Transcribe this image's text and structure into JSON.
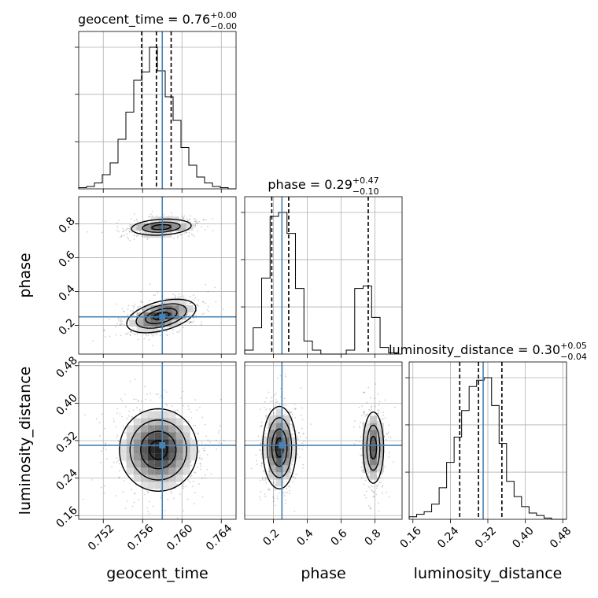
{
  "chart_data": {
    "type": "corner",
    "parameters": [
      {
        "name": "geocent_time",
        "range": [
          0.7495,
          0.7655
        ],
        "ticks": [
          0.752,
          0.756,
          0.76,
          0.764
        ],
        "tick_labels": [
          "0.752",
          "0.756",
          "0.760",
          "0.764"
        ],
        "median": 0.7574,
        "quantiles": [
          0.7559,
          0.7574,
          0.7589
        ],
        "true_value": 0.758,
        "title_value": "0.76",
        "title_plus": "+0.00",
        "title_minus": "−0.00",
        "hist_bins": [
          0.7495,
          0.7503,
          0.7511,
          0.7519,
          0.7527,
          0.7535,
          0.7543,
          0.7551,
          0.7559,
          0.7567,
          0.7575,
          0.7583,
          0.7591,
          0.7599,
          0.7607,
          0.7615,
          0.7623,
          0.7631,
          0.7639,
          0.7647,
          0.7655
        ],
        "hist_counts": [
          1,
          2,
          5,
          12,
          22,
          42,
          65,
          92,
          99,
          120,
          100,
          78,
          58,
          35,
          20,
          10,
          5,
          2,
          1,
          0
        ]
      },
      {
        "name": "phase",
        "range": [
          0.03,
          0.96
        ],
        "ticks": [
          0.2,
          0.4,
          0.6,
          0.8
        ],
        "tick_labels": [
          "0.2",
          "0.4",
          "0.6",
          "0.8"
        ],
        "median": 0.29,
        "quantiles": [
          0.19,
          0.29,
          0.76
        ],
        "true_value": 0.25,
        "title_value": "0.29",
        "title_plus": "+0.47",
        "title_minus": "−0.10",
        "hist_bins": [
          0.03,
          0.08,
          0.13,
          0.18,
          0.23,
          0.28,
          0.33,
          0.38,
          0.43,
          0.48,
          0.53,
          0.58,
          0.63,
          0.68,
          0.73,
          0.78,
          0.83,
          0.88,
          0.93
        ],
        "hist_counts": [
          3,
          20,
          58,
          105,
          108,
          92,
          50,
          10,
          3,
          0,
          0,
          0,
          3,
          50,
          52,
          28,
          5,
          1
        ]
      },
      {
        "name": "luminosity_distance",
        "range": [
          0.152,
          0.488
        ],
        "ticks": [
          0.16,
          0.24,
          0.32,
          0.4,
          0.48
        ],
        "tick_labels": [
          "0.16",
          "0.24",
          "0.32",
          "0.40",
          "0.48"
        ],
        "median": 0.3,
        "quantiles": [
          0.26,
          0.3,
          0.35
        ],
        "true_value": 0.31,
        "title_value": "0.30",
        "title_plus": "+0.05",
        "title_minus": "−0.04",
        "hist_bins": [
          0.152,
          0.168,
          0.184,
          0.2,
          0.216,
          0.232,
          0.248,
          0.264,
          0.28,
          0.296,
          0.312,
          0.328,
          0.344,
          0.36,
          0.376,
          0.392,
          0.408,
          0.424,
          0.44,
          0.456,
          0.472,
          0.488
        ],
        "hist_counts": [
          2,
          4,
          6,
          12,
          25,
          45,
          65,
          86,
          105,
          110,
          112,
          90,
          60,
          30,
          18,
          10,
          5,
          3,
          1,
          0,
          0
        ]
      }
    ],
    "modes": [
      {
        "pair": "phase_vs_geocent_time",
        "blobs": [
          {
            "x": 0.7579,
            "y": 0.255,
            "sx": 0.0016,
            "sy": 0.045,
            "rho": -0.45,
            "weight": 0.75
          },
          {
            "x": 0.7579,
            "y": 0.78,
            "sx": 0.0016,
            "sy": 0.025,
            "rho": -0.2,
            "weight": 0.25
          }
        ]
      },
      {
        "pair": "luminosity_distance_vs_geocent_time",
        "blobs": [
          {
            "x": 0.7576,
            "y": 0.3,
            "sx": 0.0018,
            "sy": 0.04,
            "rho": 0.0,
            "weight": 1.0
          }
        ]
      },
      {
        "pair": "luminosity_distance_vs_phase",
        "blobs": [
          {
            "x": 0.235,
            "y": 0.305,
            "sx": 0.045,
            "sy": 0.04,
            "rho": 0.0,
            "weight": 0.75
          },
          {
            "x": 0.79,
            "y": 0.305,
            "sx": 0.032,
            "sy": 0.04,
            "rho": 0.0,
            "weight": 0.25
          }
        ]
      }
    ],
    "truth_color": "#4682b4",
    "grid": true
  }
}
